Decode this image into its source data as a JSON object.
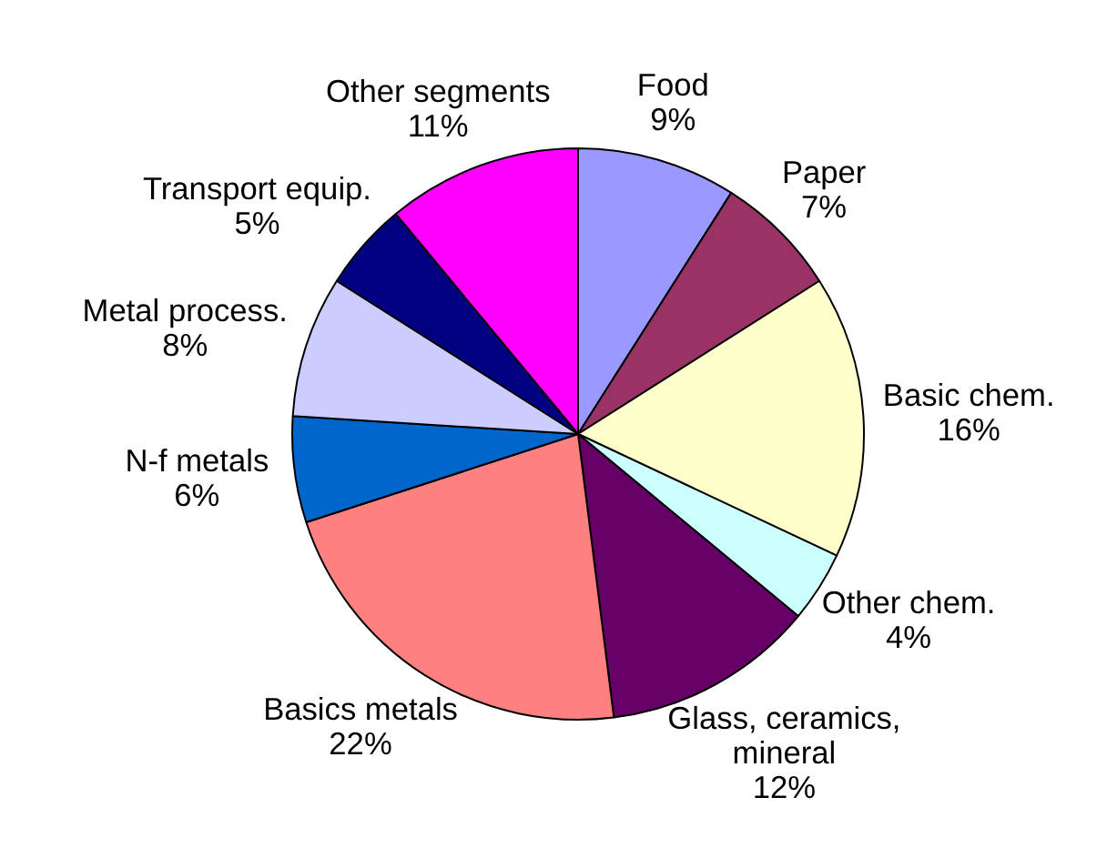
{
  "chart_data": {
    "type": "pie",
    "categories": [
      "Food",
      "Paper",
      "Basic chem.",
      "Other chem.",
      "Glass, ceramics, mineral",
      "Basics metals",
      "N-f metals",
      "Metal process.",
      "Transport equip.",
      "Other segments"
    ],
    "values": [
      9,
      7,
      16,
      4,
      12,
      22,
      6,
      8,
      5,
      11
    ],
    "colors": [
      "#9999ff",
      "#993366",
      "#ffffcc",
      "#ccffff",
      "#660066",
      "#ff8080",
      "#0066cc",
      "#ccccff",
      "#000080",
      "#ff00ff"
    ],
    "value_labels": [
      "9%",
      "7%",
      "16%",
      "4%",
      "12%",
      "22%",
      "6%",
      "8%",
      "5%",
      "11%"
    ],
    "legend": false
  }
}
